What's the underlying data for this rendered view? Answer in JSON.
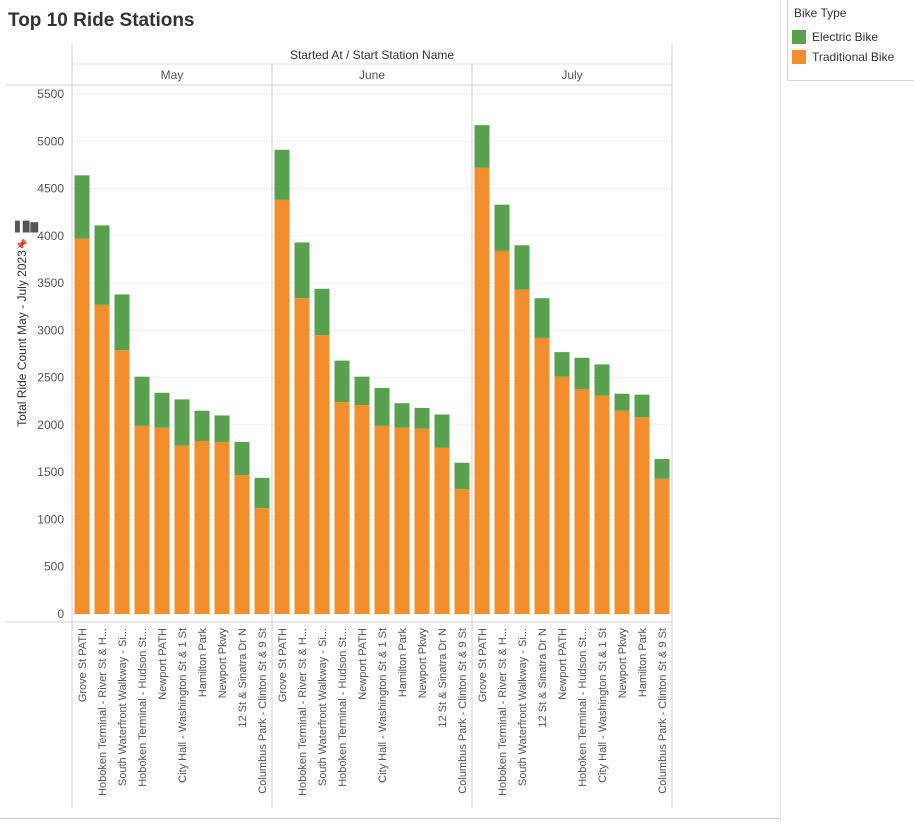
{
  "title": "Top 10 Ride Stations",
  "legend": {
    "title": "Bike Type",
    "items": [
      {
        "label": "Electric Bike",
        "color": "#59a14f"
      },
      {
        "label": "Traditional Bike",
        "color": "#f28e2b"
      }
    ]
  },
  "chart_data": {
    "type": "bar",
    "stacked": true,
    "header": "Started At / Start Station Name",
    "ylabel": "Total Ride Count May - July 2023",
    "ylim": [
      0,
      5500
    ],
    "yticks": [
      0,
      500,
      1000,
      1500,
      2000,
      2500,
      3000,
      3500,
      4000,
      4500,
      5000,
      5500
    ],
    "grid": true,
    "legend_position": "top-right",
    "panels": [
      {
        "name": "May",
        "categories": [
          "Grove St PATH",
          "Hoboken Terminal - River St & H...",
          "South Waterfront Walkway - Si...",
          "Hoboken Terminal - Hudson St...",
          "Newport PATH",
          "City Hall - Washington St & 1 St",
          "Hamilton Park",
          "Newport Pkwy",
          "12 St & Sinatra Dr N",
          "Columbus Park - Clinton St & 9 St"
        ],
        "series": [
          {
            "name": "Traditional Bike",
            "values": [
              3970,
              3270,
              2790,
              1990,
              1970,
              1780,
              1830,
              1820,
              1470,
              1120
            ]
          },
          {
            "name": "Electric Bike",
            "values": [
              670,
              840,
              590,
              520,
              370,
              490,
              320,
              280,
              350,
              320
            ]
          }
        ]
      },
      {
        "name": "June",
        "categories": [
          "Grove St PATH",
          "Hoboken Terminal - River St & H...",
          "South Waterfront Walkway - Si...",
          "Hoboken Terminal - Hudson St...",
          "Newport PATH",
          "City Hall - Washington St & 1 St",
          "Hamilton Park",
          "Newport Pkwy",
          "12 St & Sinatra Dr N",
          "Columbus Park - Clinton St & 9 St"
        ],
        "series": [
          {
            "name": "Traditional Bike",
            "values": [
              4380,
              3340,
              2950,
              2240,
              2210,
              1990,
              1970,
              1960,
              1760,
              1320
            ]
          },
          {
            "name": "Electric Bike",
            "values": [
              530,
              590,
              490,
              440,
              300,
              400,
              260,
              220,
              350,
              280
            ]
          }
        ]
      },
      {
        "name": "July",
        "categories": [
          "Grove St PATH",
          "Hoboken Terminal - River St & H...",
          "South Waterfront Walkway - Si...",
          "12 St & Sinatra Dr N",
          "Newport PATH",
          "Hoboken Terminal - Hudson St...",
          "City Hall - Washington St & 1 St",
          "Newport Pkwy",
          "Hamilton Park",
          "Columbus Park - Clinton St & 9 St"
        ],
        "series": [
          {
            "name": "Traditional Bike",
            "values": [
              4720,
              3840,
              3430,
              2920,
              2510,
              2380,
              2310,
              2150,
              2080,
              1430
            ]
          },
          {
            "name": "Electric Bike",
            "values": [
              450,
              490,
              470,
              420,
              260,
              330,
              330,
              180,
              240,
              210
            ]
          }
        ]
      }
    ]
  }
}
